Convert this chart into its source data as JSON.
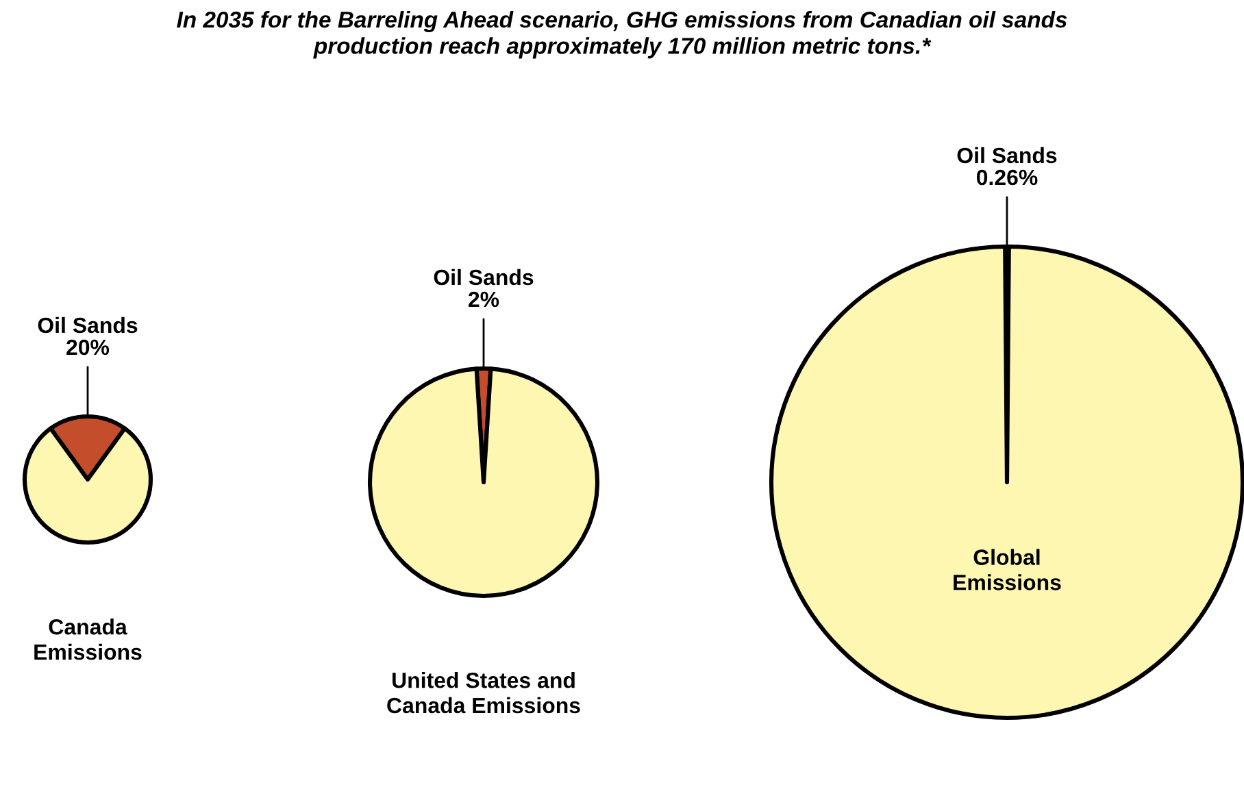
{
  "chart_data": [
    {
      "type": "pie",
      "title": "In 2035 for the Barreling Ahead scenario, GHG emissions from Canadian oil sands\nproduction reach approximately 170 million metric tons.*",
      "categories": [
        "Oil Sands",
        "Canada\nEmissions"
      ],
      "values": [
        20,
        80
      ],
      "value_labels": [
        "20%",
        null
      ],
      "colors": [
        "#c44d2c",
        "#fef7b2"
      ]
    },
    {
      "type": "pie",
      "categories": [
        "Oil Sands",
        "United States and\nCanada Emissions"
      ],
      "values": [
        2,
        98
      ],
      "value_labels": [
        "2%",
        null
      ],
      "colors": [
        "#c44d2c",
        "#fef7b2"
      ]
    },
    {
      "type": "pie",
      "categories": [
        "Oil Sands",
        "Global\nEmissions"
      ],
      "values": [
        0.26,
        99.74
      ],
      "value_labels": [
        "0.26%",
        null
      ],
      "colors": [
        "#c44d2c",
        "#fef7b2"
      ]
    }
  ]
}
